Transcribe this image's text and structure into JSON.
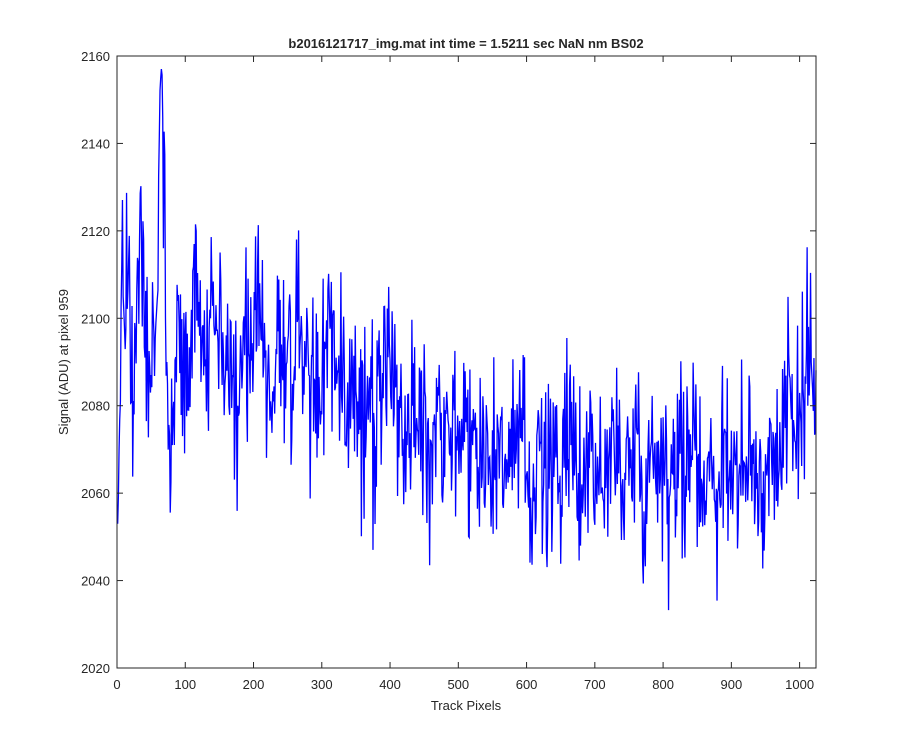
{
  "chart_data": {
    "type": "line",
    "title": "b2016121717_img.mat int time = 1.5211 sec  NaN nm BS02",
    "xlabel": "Track Pixels",
    "ylabel": "Signal (ADU) at pixel 959",
    "xlim": [
      0,
      1024
    ],
    "ylim": [
      2020,
      2160
    ],
    "xticks": [
      0,
      100,
      200,
      300,
      400,
      500,
      600,
      700,
      800,
      900,
      1000
    ],
    "yticks": [
      2020,
      2040,
      2060,
      2080,
      2100,
      2120,
      2140,
      2160
    ],
    "grid": false,
    "series_color": "#0000ff",
    "series": [
      {
        "x_start": 1,
        "x_step": 8,
        "values": [
          2053,
          2105,
          2113,
          2078,
          2118,
          2091,
          2083,
          2099,
          2157,
          2090,
          2071,
          2104,
          2086,
          2079,
          2117,
          2096,
          2089,
          2100,
          2103,
          2094,
          2088,
          2087,
          2080,
          2099,
          2092,
          2106,
          2108,
          2091,
          2081,
          2093,
          2094,
          2090,
          2085,
          2100,
          2089,
          2087,
          2086,
          2080,
          2093,
          2099,
          2091,
          2082,
          2079,
          2087,
          2081,
          2069,
          2082,
          2075,
          2081,
          2094,
          2082,
          2085,
          2079,
          2071,
          2080,
          2074,
          2076,
          2065,
          2078,
          2081,
          2079,
          2075,
          2073,
          2077,
          2074,
          2071,
          2066,
          2077,
          2068,
          2064,
          2072,
          2069,
          2066,
          2070,
          2072,
          2065,
          2058,
          2079,
          2062,
          2061,
          2070,
          2064,
          2068,
          2071,
          2066,
          2062,
          2069,
          2073,
          2064,
          2058,
          2070,
          2066,
          2071,
          2063,
          2070,
          2075,
          2063,
          2061,
          2068,
          2072,
          2067,
          2059,
          2074,
          2069,
          2064,
          2066,
          2071,
          2062,
          2068,
          2065,
          2061,
          2073,
          2064,
          2070,
          2066,
          2058,
          2071,
          2061,
          2060,
          2067,
          2074,
          2063,
          2081,
          2087,
          2072,
          2079,
          2085,
          2090
        ]
      }
    ],
    "noise_amplitude": 22,
    "noise_seed": 959
  }
}
